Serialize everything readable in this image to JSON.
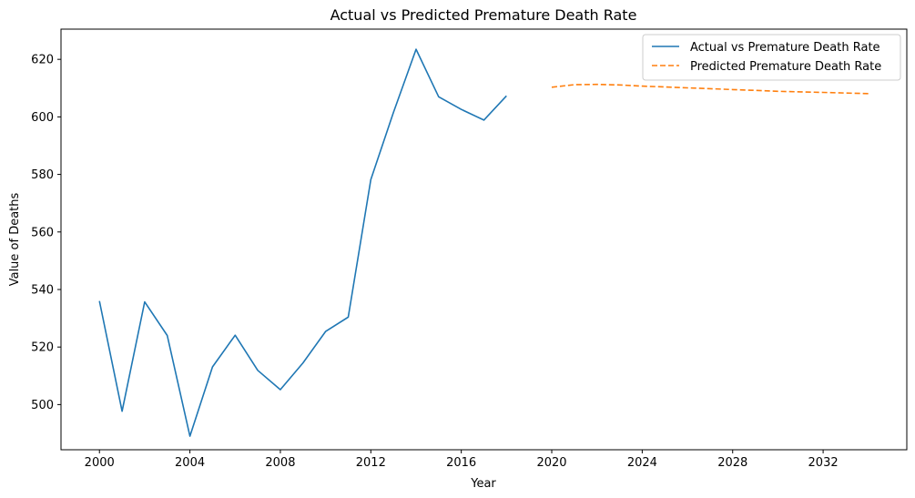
{
  "chart_data": {
    "type": "line",
    "title": "Actual vs Predicted Premature Death Rate",
    "xlabel": "Year",
    "ylabel": "Value of Deaths",
    "xlim": [
      1998.3,
      2035.7
    ],
    "ylim": [
      484.3,
      630.5
    ],
    "xticks": [
      2000,
      2004,
      2008,
      2012,
      2016,
      2020,
      2024,
      2028,
      2032
    ],
    "yticks": [
      500,
      520,
      540,
      560,
      580,
      600,
      620
    ],
    "grid": false,
    "legend_position": "top-right",
    "series": [
      {
        "name": "Actual vs Premature Death Rate",
        "color": "#1f77b4",
        "style": "solid",
        "x": [
          2000,
          2001,
          2002,
          2003,
          2004,
          2005,
          2006,
          2007,
          2008,
          2009,
          2010,
          2011,
          2012,
          2013,
          2014,
          2015,
          2016,
          2017,
          2018
        ],
        "y": [
          536.0,
          497.7,
          535.7,
          524.0,
          489.0,
          513.1,
          524.1,
          511.9,
          505.2,
          514.5,
          525.4,
          530.4,
          578.2,
          601.5,
          623.5,
          607.0,
          602.6,
          598.9,
          607.3
        ]
      },
      {
        "name": "Predicted Premature Death Rate",
        "color": "#ff7f0e",
        "style": "dashed",
        "x": [
          2020,
          2021,
          2022,
          2023,
          2024,
          2025,
          2026,
          2027,
          2028,
          2029,
          2030,
          2031,
          2032,
          2033,
          2034
        ],
        "y": [
          610.3,
          611.2,
          611.3,
          611.1,
          610.7,
          610.4,
          610.1,
          609.8,
          609.5,
          609.2,
          608.9,
          608.7,
          608.5,
          608.3,
          608.1
        ]
      }
    ]
  }
}
